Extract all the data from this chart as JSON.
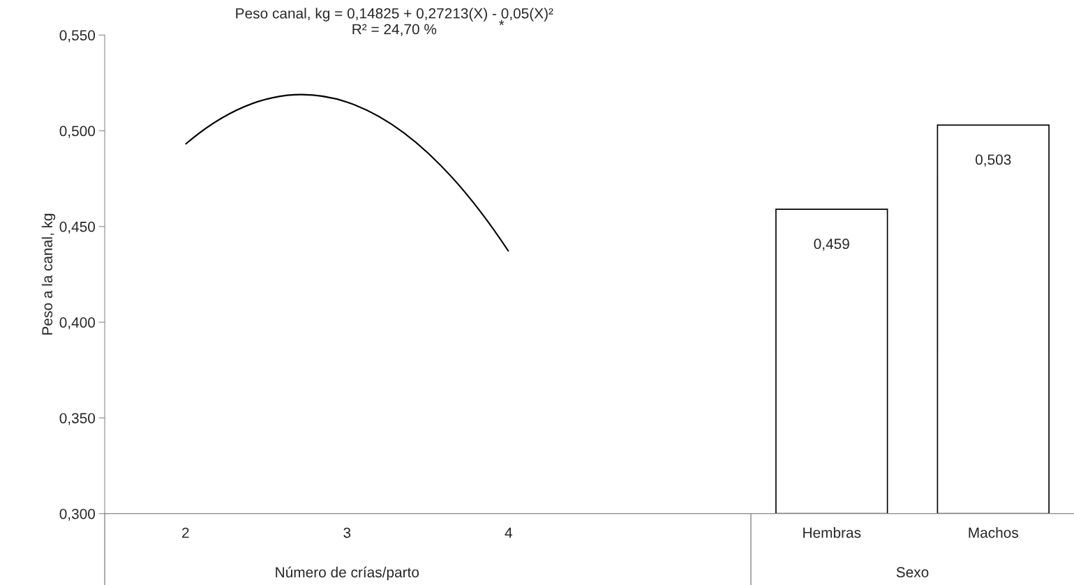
{
  "chart_data": {
    "type": "bar",
    "title": "Peso canal, kg = 0,14825 + 0,27213(X) - 0,05(X)²",
    "subtitle": "R² = 24,70 %",
    "ylabel": "Peso a la canal, kg",
    "annotations": [
      "Número de crías/parto",
      "Sexo",
      "*"
    ],
    "categories": [
      "2",
      "3",
      "4",
      null,
      "Hembras",
      "Machos"
    ],
    "series": [
      {
        "type": "line",
        "color": "#000000",
        "values": [
          0.493,
          0.515,
          0.437,
          null,
          null,
          null
        ]
      },
      {
        "color": "#ffffff",
        "values": [
          null,
          null,
          null,
          null,
          0.459,
          0.503
        ],
        "value_labels": [
          null,
          null,
          null,
          null,
          "0,459",
          "0,503"
        ]
      }
    ],
    "ylim": [
      0.3,
      0.55
    ],
    "yticks": [
      {
        "value": 0.3,
        "label": "0,300"
      },
      {
        "value": 0.35,
        "label": "0,350"
      },
      {
        "value": 0.4,
        "label": "0,400"
      },
      {
        "value": 0.45,
        "label": "0,450"
      },
      {
        "value": 0.5,
        "label": "0,500"
      },
      {
        "value": 0.55,
        "label": "0,550"
      }
    ],
    "grid": false,
    "legend": false
  }
}
